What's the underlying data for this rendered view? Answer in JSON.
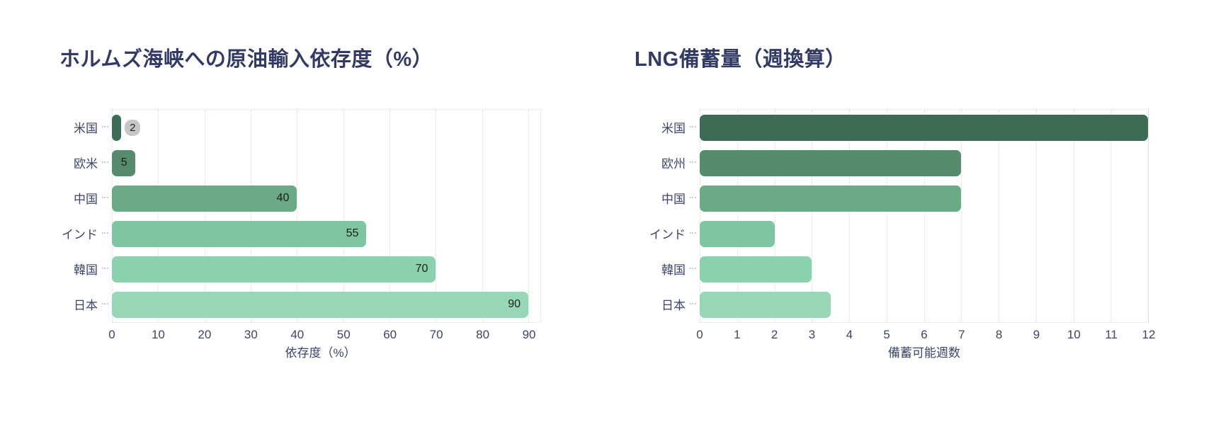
{
  "colors": {
    "background": "#ffffff",
    "title_text": "#333a64",
    "axis_text": "#3d4468",
    "value_text": "#1c1c1c",
    "grid": "#dcdcdc",
    "badge_bg": "#c6c6c6",
    "bar_gradient": [
      "#3e6b56",
      "#568b6e",
      "#6aaa86",
      "#7fc5a1",
      "#8bd1ad",
      "#97d7b7"
    ]
  },
  "chart_data": [
    {
      "type": "bar",
      "orientation": "horizontal",
      "title": "ホルムズ海峡への原油輸入依存度（%）",
      "xlabel": "依存度（%）",
      "categories": [
        "米国",
        "欧米",
        "中国",
        "インド",
        "韓国",
        "日本"
      ],
      "values": [
        2,
        5,
        40,
        55,
        70,
        90
      ],
      "value_labels": [
        "2",
        "5",
        "40",
        "55",
        "70",
        "90"
      ],
      "xlim": [
        0,
        90
      ],
      "xticks": [
        0,
        10,
        20,
        30,
        40,
        50,
        60,
        70,
        80,
        90
      ],
      "grid": true,
      "legend": false,
      "bar_colors": [
        "#3e6b56",
        "#568b6e",
        "#6aaa86",
        "#7fc5a1",
        "#8bd1ad",
        "#97d7b7"
      ]
    },
    {
      "type": "bar",
      "orientation": "horizontal",
      "title": "LNG備蓄量（週換算）",
      "xlabel": "備蓄可能週数",
      "categories": [
        "米国",
        "欧州",
        "中国",
        "インド",
        "韓国",
        "日本"
      ],
      "values": [
        12,
        7,
        7,
        2,
        3,
        3.5
      ],
      "value_labels": [
        "",
        "",
        "",
        "",
        "",
        ""
      ],
      "xlim": [
        0,
        12
      ],
      "xticks": [
        0,
        1,
        2,
        3,
        4,
        5,
        6,
        7,
        8,
        9,
        10,
        11,
        12
      ],
      "grid": true,
      "legend": false,
      "bar_colors": [
        "#3e6b56",
        "#568b6e",
        "#6aaa86",
        "#7fc5a1",
        "#8bd1ad",
        "#97d7b7"
      ]
    }
  ]
}
